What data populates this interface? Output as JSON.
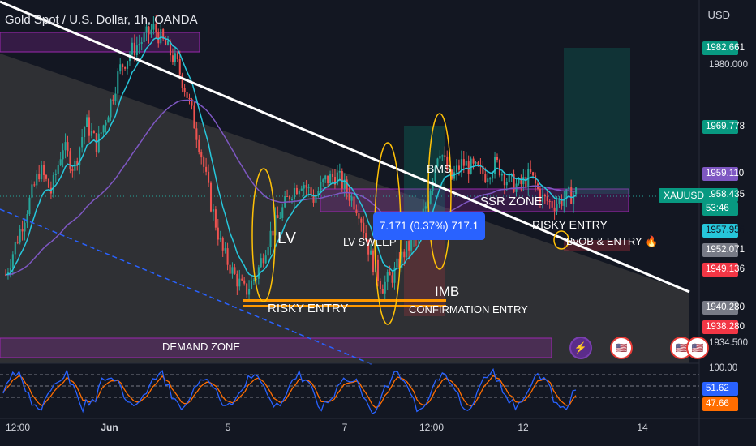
{
  "header": {
    "title": "Gold Spot / U.S. Dollar, 1h, OANDA",
    "currency": "USD"
  },
  "price_axis": {
    "labels": [
      {
        "text": "1982.661",
        "color": "#089981"
      },
      {
        "text": "1980.000",
        "color": ""
      },
      {
        "text": "1969.778",
        "color": "#089981"
      },
      {
        "text": "1959.110",
        "color": "#7e57c2"
      },
      {
        "text": "1958.435",
        "color": "#089981"
      },
      {
        "text": "53:46",
        "color": "#089981"
      },
      {
        "text": "1957.956",
        "color": "#26c6da"
      },
      {
        "text": "1952.071",
        "color": "#787b86"
      },
      {
        "text": "1949.136",
        "color": "#f23645"
      },
      {
        "text": "1940.280",
        "color": "#787b86"
      },
      {
        "text": "1938.280",
        "color": "#f23645"
      },
      {
        "text": "1934.500",
        "color": ""
      }
    ],
    "symbol_tag": "XAUUSD"
  },
  "oscillator_axis": {
    "labels": [
      {
        "text": "100.00",
        "color": ""
      },
      {
        "text": "51.62",
        "color": "#2962ff"
      },
      {
        "text": "47.66",
        "color": "#ff6d00"
      }
    ]
  },
  "time_axis": [
    "12:00",
    "Jun",
    "5",
    "7",
    "12:00",
    "12",
    "14"
  ],
  "annotations": {
    "lv": "LV",
    "lv_sweep": "LV SWEEP",
    "bms": "BMS",
    "ssr_zone": "SSR ZONE",
    "risky_entry_1": "RISKY ENTRY",
    "risky_entry_2": "RISKY ENTRY",
    "confirmation_entry": "CONFIRMATION ENTRY",
    "imb": "IMB",
    "bvob_entry": "BvOB & ENTRY 🔥",
    "demand_zone": "DEMAND ZONE",
    "measure": "7.171 (0.37%) 717.1"
  },
  "icons": [
    "lightning-icon",
    "us-flag-icon",
    "us-flag-icon",
    "us-flag-icon"
  ],
  "colors": {
    "background": "#131722",
    "up": "#26a69a",
    "down": "#ef5350",
    "trendline": "#ffffff",
    "ema_fast": "#26c6da",
    "ema_slow": "#7e57c2",
    "zone": "#9c27b0",
    "entry_line": "#ff9800",
    "stoch_k": "#2962ff",
    "stoch_d": "#ff6d00"
  },
  "chart_data": {
    "type": "candlestick",
    "symbol": "XAUUSD",
    "timeframe": "1h",
    "last_price": 1958.435,
    "ylim": [
      1930,
      1988
    ],
    "close_path": [
      1944,
      1950,
      1956,
      1962,
      1958,
      1966,
      1962,
      1970,
      1966,
      1972,
      1979,
      1982,
      1984,
      1986,
      1983,
      1980,
      1974,
      1966,
      1956,
      1948,
      1944,
      1941,
      1944,
      1950,
      1954,
      1958,
      1960,
      1957,
      1960,
      1961,
      1958,
      1955,
      1947,
      1942,
      1944,
      1948,
      1950,
      1957,
      1966,
      1960,
      1963,
      1962,
      1961,
      1963,
      1960,
      1959,
      1961,
      1957,
      1956,
      1957,
      1958
    ]
  }
}
